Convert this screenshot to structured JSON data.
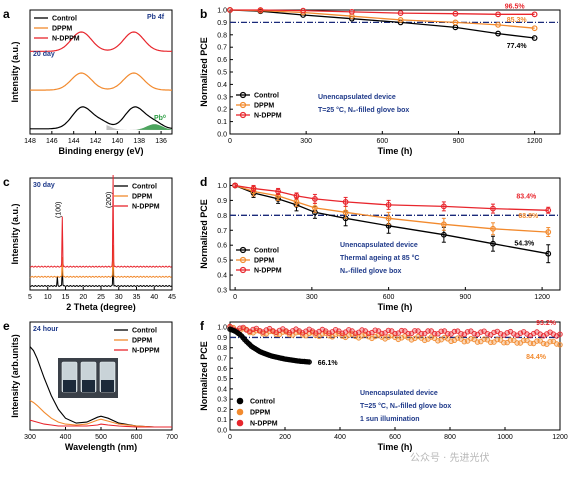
{
  "colors": {
    "control": "#000000",
    "dppm": "#f28a2e",
    "ndppm": "#e8262d",
    "annot": "#1f3a8a",
    "dash": "#1a2a7a",
    "pb0": "#2e9e45",
    "gray": "#999999"
  },
  "chart_data": [
    {
      "panel": "a",
      "type": "line",
      "xlabel": "Binding energy (eV)",
      "ylabel": "Intensity (a.u.)",
      "tag": "20 day",
      "corner_label": "Pb 4f",
      "peak_label": "Pb⁰",
      "xlim": [
        148,
        135
      ],
      "xticks": [
        148,
        146,
        144,
        142,
        140,
        138,
        136
      ],
      "legend": [
        "Control",
        "DPPM",
        "N-DPPM"
      ],
      "series": [
        {
          "name": "Control",
          "color": "control",
          "peaks": [
            [
              143.2,
              0.56
            ],
            [
              138.4,
              0.56
            ]
          ],
          "offset": 0.0
        },
        {
          "name": "DPPM",
          "color": "dppm",
          "peaks": [
            [
              143.3,
              0.44
            ],
            [
              138.5,
              0.44
            ]
          ],
          "offset": 1.0
        },
        {
          "name": "N-DPPM",
          "color": "ndppm",
          "peaks": [
            [
              143.3,
              0.5
            ],
            [
              138.5,
              0.5
            ]
          ],
          "offset": 2.0
        }
      ],
      "pb0_peaks": [
        [
          141.4,
          0.15
        ],
        [
          136.6,
          0.15
        ]
      ]
    },
    {
      "panel": "b",
      "type": "line",
      "xlabel": "Time (h)",
      "ylabel": "Normalized PCE",
      "xlim": [
        0,
        1300
      ],
      "ylim": [
        0.0,
        1.0
      ],
      "xticks": [
        0,
        300,
        600,
        900,
        1200
      ],
      "yticks": [
        "0.0",
        "0.1",
        "0.2",
        "0.3",
        "0.4",
        "0.5",
        "0.6",
        "0.7",
        "0.8",
        "0.9",
        "1.0"
      ],
      "reference_line": 0.9,
      "legend": [
        "Control",
        "DPPM",
        "N-DPPM"
      ],
      "annotations": [
        "Unencapsulated device",
        "T=25 °C, N₂-filled glove box"
      ],
      "end_labels": {
        "control": "77.4%",
        "dppm": "85.3%",
        "ndppm": "96.5%"
      },
      "series": [
        {
          "name": "Control",
          "color": "control",
          "x": [
            0,
            120,
            288,
            480,
            672,
            888,
            1056,
            1200
          ],
          "y": [
            1.0,
            0.99,
            0.96,
            0.93,
            0.9,
            0.86,
            0.81,
            0.774
          ]
        },
        {
          "name": "DPPM",
          "color": "dppm",
          "x": [
            0,
            120,
            288,
            480,
            672,
            888,
            1056,
            1200
          ],
          "y": [
            1.0,
            0.995,
            0.98,
            0.95,
            0.92,
            0.9,
            0.88,
            0.853
          ]
        },
        {
          "name": "N-DPPM",
          "color": "ndppm",
          "x": [
            0,
            120,
            288,
            480,
            672,
            888,
            1056,
            1200
          ],
          "y": [
            1.0,
            1.0,
            0.995,
            0.985,
            0.975,
            0.97,
            0.965,
            0.965
          ]
        }
      ]
    },
    {
      "panel": "c",
      "type": "line",
      "xlabel": "2 Theta (degree)",
      "ylabel": "Intensity (a.u.)",
      "tag": "30 day",
      "xlim": [
        5,
        45
      ],
      "xticks": [
        5,
        10,
        15,
        20,
        25,
        30,
        35,
        40,
        45
      ],
      "legend": [
        "Control",
        "DPPM",
        "N-DPPM"
      ],
      "peak_labels": [
        {
          "x": 14.1,
          "label": "(100)"
        },
        {
          "x": 28.4,
          "label": "(200)"
        }
      ],
      "series": [
        {
          "name": "Control",
          "color": "control",
          "offset": 0.0,
          "peaks": [
            [
              12.7,
              0.1
            ],
            [
              14.1,
              0.2
            ],
            [
              28.4,
              0.3
            ]
          ]
        },
        {
          "name": "DPPM",
          "color": "dppm",
          "offset": 0.1,
          "peaks": [
            [
              14.1,
              0.22
            ],
            [
              28.4,
              0.35
            ]
          ]
        },
        {
          "name": "N-DPPM",
          "color": "ndppm",
          "offset": 0.21,
          "peaks": [
            [
              14.1,
              0.55
            ],
            [
              28.4,
              1.0
            ]
          ]
        }
      ]
    },
    {
      "panel": "d",
      "type": "line",
      "xlabel": "Time (h)",
      "ylabel": "Normalized PCE",
      "xlim": [
        -20,
        1270
      ],
      "ylim": [
        0.3,
        1.05
      ],
      "xticks": [
        0,
        300,
        600,
        900,
        1200
      ],
      "yticks": [
        "0.3",
        "0.4",
        "0.5",
        "0.6",
        "0.7",
        "0.8",
        "0.9",
        "1.0"
      ],
      "reference_line": 0.8,
      "legend": [
        "Control",
        "DPPM",
        "N-DPPM"
      ],
      "annotations": [
        "Unencapsulated device",
        "Thermal ageing at 85 °C",
        "N₂-filled glove box"
      ],
      "end_labels": {
        "control": "54.3%",
        "dppm": "68.8%",
        "ndppm": "83.4%"
      },
      "series": [
        {
          "name": "Control",
          "color": "control",
          "x": [
            0,
            72,
            168,
            240,
            312,
            432,
            600,
            816,
            1008,
            1224
          ],
          "y": [
            1.0,
            0.95,
            0.91,
            0.87,
            0.82,
            0.78,
            0.73,
            0.67,
            0.61,
            0.543
          ],
          "err": [
            0.01,
            0.03,
            0.03,
            0.04,
            0.04,
            0.05,
            0.05,
            0.05,
            0.05,
            0.06
          ]
        },
        {
          "name": "DPPM",
          "color": "dppm",
          "x": [
            0,
            72,
            168,
            240,
            312,
            432,
            600,
            816,
            1008,
            1224
          ],
          "y": [
            1.0,
            0.96,
            0.93,
            0.89,
            0.85,
            0.82,
            0.78,
            0.74,
            0.71,
            0.688
          ],
          "err": [
            0.01,
            0.03,
            0.03,
            0.03,
            0.03,
            0.04,
            0.04,
            0.04,
            0.04,
            0.03
          ]
        },
        {
          "name": "N-DPPM",
          "color": "ndppm",
          "x": [
            0,
            72,
            168,
            240,
            312,
            432,
            600,
            816,
            1008,
            1224
          ],
          "y": [
            1.0,
            0.98,
            0.96,
            0.93,
            0.91,
            0.89,
            0.87,
            0.86,
            0.845,
            0.834
          ],
          "err": [
            0.01,
            0.02,
            0.02,
            0.02,
            0.03,
            0.03,
            0.03,
            0.03,
            0.03,
            0.02
          ]
        }
      ]
    },
    {
      "panel": "e",
      "type": "line",
      "xlabel": "Wavelength (nm)",
      "ylabel": "Intensity (arb.units)",
      "tag": "24 hour",
      "xlim": [
        300,
        700
      ],
      "xticks": [
        300,
        400,
        500,
        600,
        700
      ],
      "legend": [
        "Control",
        "DPPM",
        "N-DPPM"
      ],
      "series": [
        {
          "name": "Control",
          "color": "control",
          "x": [
            300,
            310,
            320,
            340,
            360,
            380,
            400,
            430,
            460,
            490,
            500,
            520,
            550,
            600,
            650,
            700
          ],
          "y": [
            0.82,
            0.78,
            0.7,
            0.5,
            0.32,
            0.18,
            0.09,
            0.04,
            0.05,
            0.1,
            0.11,
            0.09,
            0.04,
            0.01,
            0.0,
            0.0
          ]
        },
        {
          "name": "DPPM",
          "color": "dppm",
          "x": [
            300,
            310,
            320,
            340,
            360,
            380,
            400,
            430,
            460,
            490,
            500,
            520,
            550,
            600,
            650,
            700
          ],
          "y": [
            0.27,
            0.25,
            0.22,
            0.15,
            0.09,
            0.05,
            0.03,
            0.02,
            0.03,
            0.07,
            0.08,
            0.06,
            0.03,
            0.01,
            0.0,
            0.0
          ]
        },
        {
          "name": "N-DPPM",
          "color": "ndppm",
          "x": [
            300,
            310,
            320,
            340,
            360,
            380,
            400,
            430,
            460,
            490,
            500,
            520,
            550,
            600,
            650,
            700
          ],
          "y": [
            0.07,
            0.06,
            0.05,
            0.03,
            0.02,
            0.01,
            0.01,
            0.01,
            0.01,
            0.02,
            0.03,
            0.02,
            0.01,
            0.0,
            0.0,
            0.0
          ]
        }
      ]
    },
    {
      "panel": "f",
      "type": "scatter",
      "xlabel": "Time (h)",
      "ylabel": "Normalized PCE",
      "xlim": [
        0,
        1200
      ],
      "ylim": [
        0.0,
        1.05
      ],
      "xticks": [
        0,
        200,
        400,
        600,
        800,
        1000,
        1200
      ],
      "yticks": [
        "0.0",
        "0.1",
        "0.2",
        "0.3",
        "0.4",
        "0.5",
        "0.6",
        "0.7",
        "0.8",
        "0.9",
        "1.0"
      ],
      "reference_line": 0.9,
      "legend": [
        "Control",
        "DPPM",
        "N-DPPM"
      ],
      "annotations": [
        "Unencapsulated device",
        "T=25 °C, N₂-filled glove box",
        "1 sun illumination"
      ],
      "end_labels": {
        "control": "66.1%",
        "dppm": "84.4%",
        "ndppm": "93.2%"
      },
      "series": [
        {
          "name": "Control",
          "color": "control",
          "x_end": 290,
          "y_points": [
            [
              0,
              0.98
            ],
            [
              20,
              0.96
            ],
            [
              40,
              0.92
            ],
            [
              60,
              0.86
            ],
            [
              80,
              0.81
            ],
            [
              110,
              0.76
            ],
            [
              150,
              0.72
            ],
            [
              200,
              0.69
            ],
            [
              250,
              0.67
            ],
            [
              290,
              0.661
            ]
          ]
        },
        {
          "name": "DPPM",
          "color": "dppm",
          "x_end": 1200,
          "y_points": [
            [
              0,
              0.99
            ],
            [
              100,
              0.95
            ],
            [
              300,
              0.93
            ],
            [
              500,
              0.91
            ],
            [
              700,
              0.89
            ],
            [
              900,
              0.87
            ],
            [
              1100,
              0.855
            ],
            [
              1200,
              0.844
            ]
          ]
        },
        {
          "name": "N-DPPM",
          "color": "ndppm",
          "x_end": 1200,
          "y_points": [
            [
              0,
              0.99
            ],
            [
              100,
              0.97
            ],
            [
              300,
              0.96
            ],
            [
              500,
              0.955
            ],
            [
              700,
              0.95
            ],
            [
              900,
              0.945
            ],
            [
              1100,
              0.935
            ],
            [
              1200,
              0.932
            ]
          ]
        }
      ]
    }
  ],
  "watermark": "公众号 · 先进光伏"
}
